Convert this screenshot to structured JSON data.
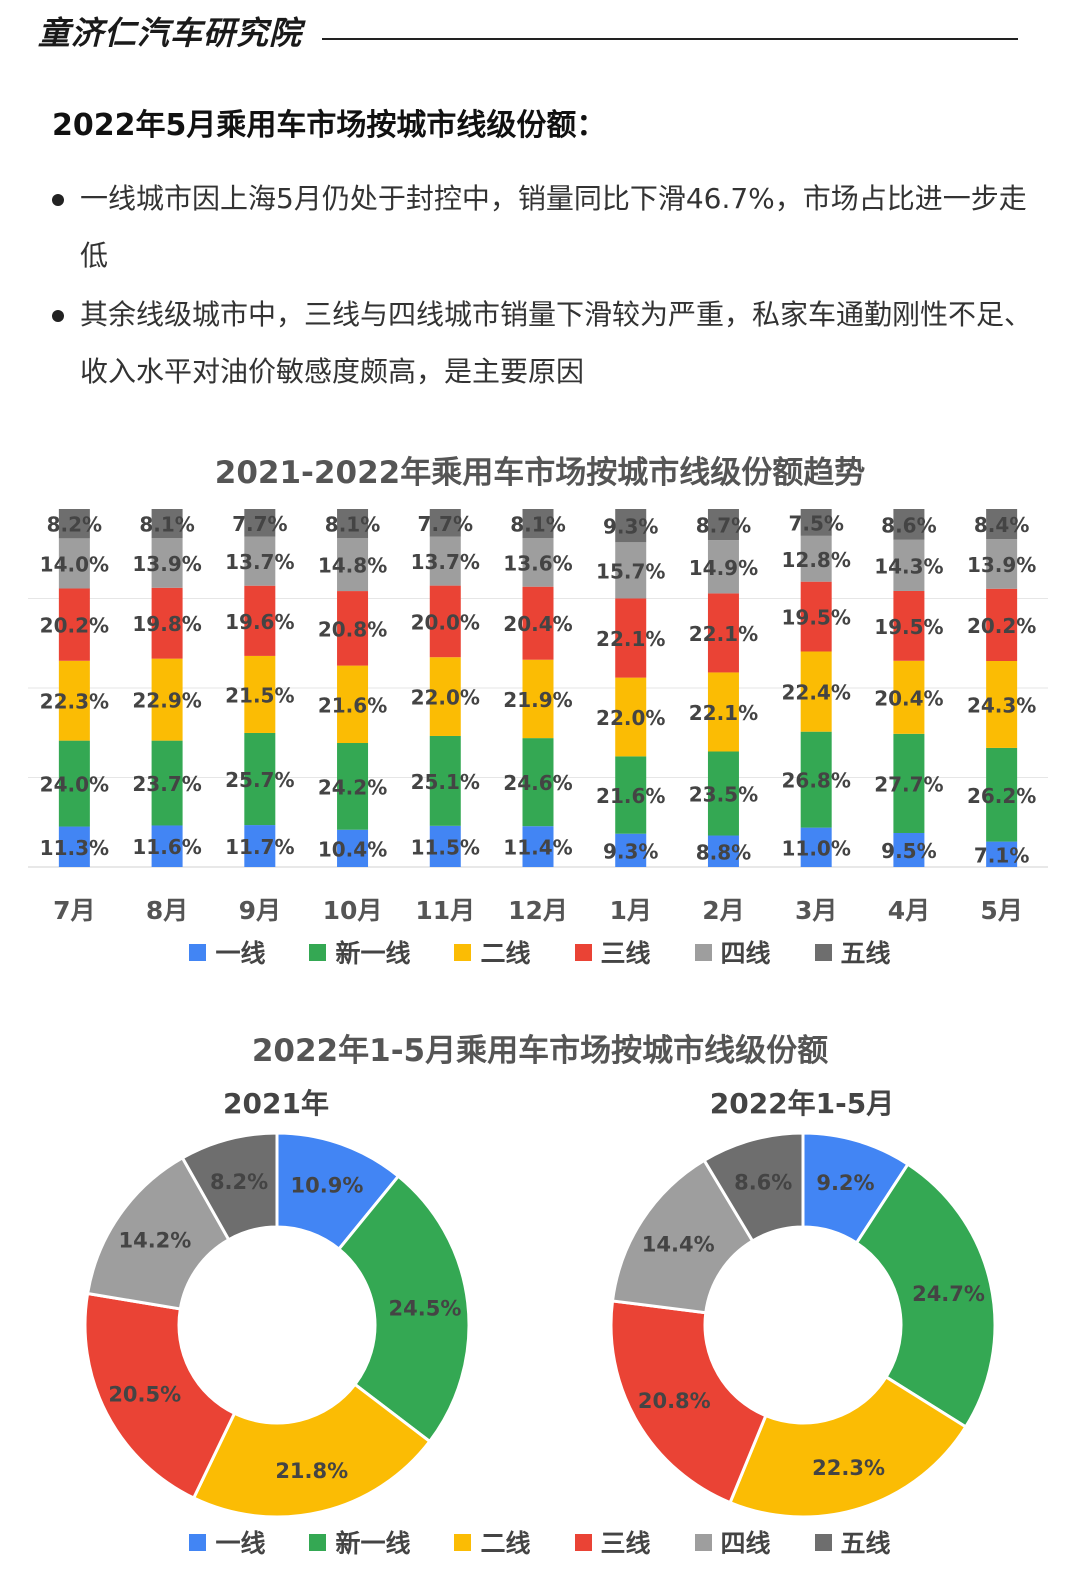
{
  "header": {
    "brand": "童济仁汽车研究院",
    "headline": "2022年5月乘用车市场按城市线级份额：",
    "bullets": [
      "一线城市因上海5月仍处于封控中，销量同比下滑46.7%，市场占比进一步走低",
      "其余线级城市中，三线与四线城市销量下滑较为严重，私家车通勤刚性不足、收入水平对油价敏感度颇高，是主要原因"
    ]
  },
  "colors": {
    "一线": "#4285F4",
    "新一线": "#34A853",
    "二线": "#FBBC04",
    "三线": "#EA4335",
    "四线": "#9E9E9E",
    "五线": "#6E6E6E"
  },
  "legend": [
    "一线",
    "新一线",
    "二线",
    "三线",
    "四线",
    "五线"
  ],
  "chart_data": [
    {
      "type": "bar",
      "stacked": true,
      "title": "2021-2022年乘用车市场按城市线级份额趋势",
      "categories": [
        "7月",
        "8月",
        "9月",
        "10月",
        "11月",
        "12月",
        "1月",
        "2月",
        "3月",
        "4月",
        "5月"
      ],
      "ylim": [
        0,
        100
      ],
      "legend_position": "bottom",
      "grid": true,
      "series": [
        {
          "name": "一线",
          "values": [
            11.3,
            11.6,
            11.7,
            10.4,
            11.5,
            11.4,
            9.3,
            8.8,
            11.0,
            9.5,
            7.1
          ]
        },
        {
          "name": "新一线",
          "values": [
            24.0,
            23.7,
            25.7,
            24.2,
            25.1,
            24.6,
            21.6,
            23.5,
            26.8,
            27.7,
            26.2
          ]
        },
        {
          "name": "二线",
          "values": [
            22.3,
            22.9,
            21.5,
            21.6,
            22.0,
            21.9,
            22.0,
            22.1,
            22.4,
            20.4,
            24.3
          ]
        },
        {
          "name": "三线",
          "values": [
            20.2,
            19.8,
            19.6,
            20.8,
            20.0,
            20.4,
            22.1,
            22.1,
            19.5,
            19.5,
            20.2
          ]
        },
        {
          "name": "四线",
          "values": [
            14.0,
            13.9,
            13.7,
            14.8,
            13.7,
            13.6,
            15.7,
            14.9,
            12.8,
            14.3,
            13.9
          ]
        },
        {
          "name": "五线",
          "values": [
            8.2,
            8.1,
            7.7,
            8.1,
            7.7,
            8.1,
            9.3,
            8.7,
            7.5,
            8.6,
            8.4
          ]
        }
      ]
    },
    {
      "type": "pie",
      "donut": true,
      "title": "2021年",
      "labels": [
        "一线",
        "新一线",
        "二线",
        "三线",
        "四线",
        "五线"
      ],
      "values": [
        10.9,
        24.5,
        21.8,
        20.5,
        14.2,
        8.2
      ],
      "legend_position": "bottom"
    },
    {
      "type": "pie",
      "donut": true,
      "title": "2022年1-5月",
      "labels": [
        "一线",
        "新一线",
        "二线",
        "三线",
        "四线",
        "五线"
      ],
      "values": [
        9.2,
        24.7,
        22.3,
        20.8,
        14.4,
        8.6
      ],
      "legend_position": "bottom"
    }
  ],
  "donut_section_title": "2022年1-5月乘用车市场按城市线级份额"
}
